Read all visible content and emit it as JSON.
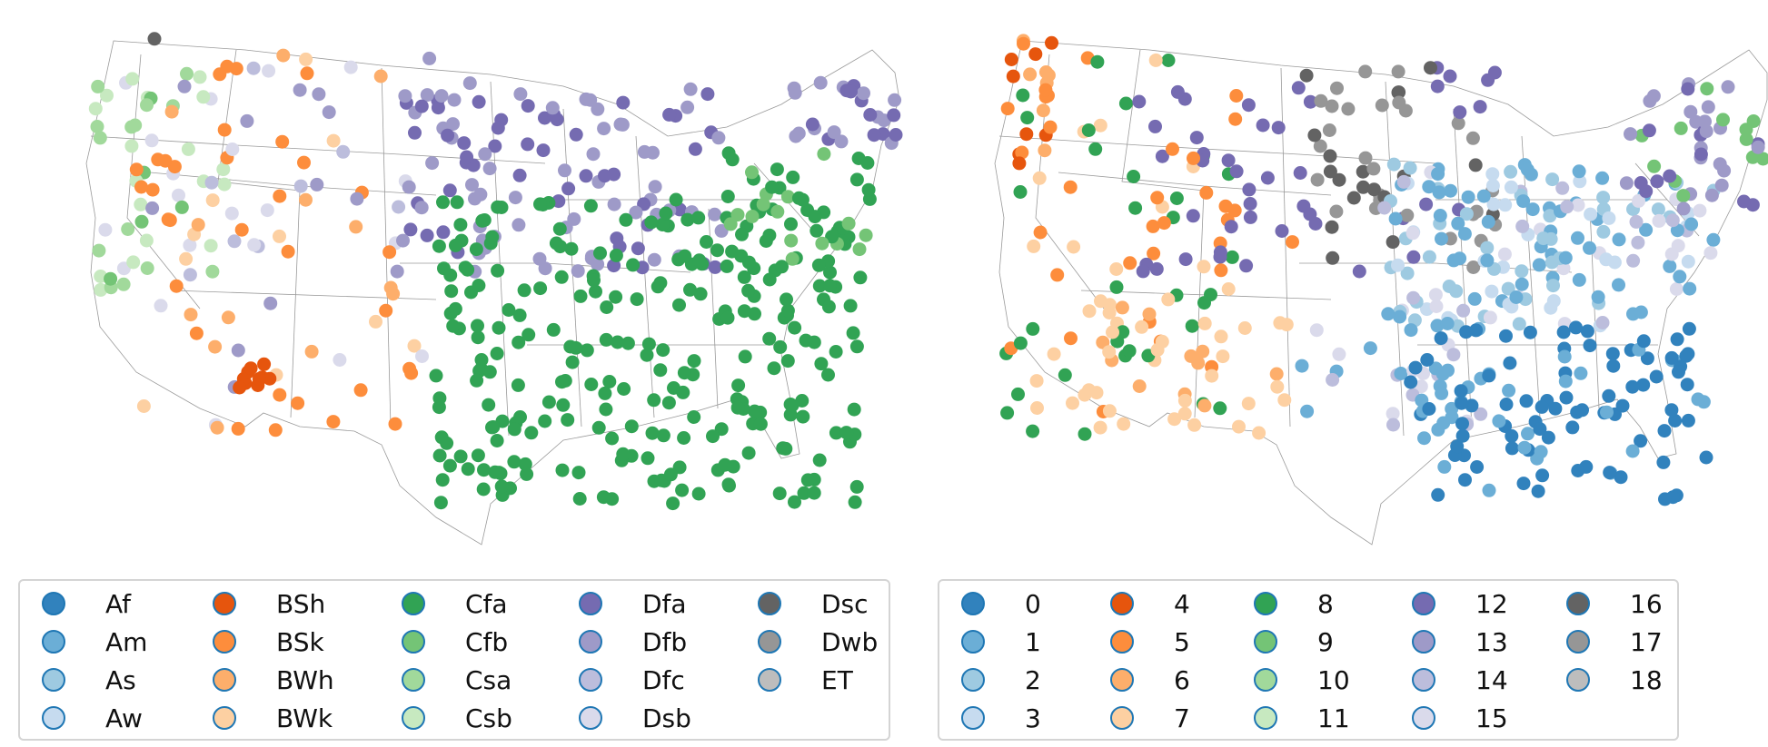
{
  "left_legend": {
    "items": [
      {
        "label": "Af",
        "color": "#3182bd"
      },
      {
        "label": "Am",
        "color": "#6baed6"
      },
      {
        "label": "As",
        "color": "#9ecae1"
      },
      {
        "label": "Aw",
        "color": "#c6dbef"
      },
      {
        "label": "BSh",
        "color": "#e6550d"
      },
      {
        "label": "BSk",
        "color": "#fd8d3c"
      },
      {
        "label": "BWh",
        "color": "#fdae6b"
      },
      {
        "label": "BWk",
        "color": "#fdd0a2"
      },
      {
        "label": "Cfa",
        "color": "#31a354"
      },
      {
        "label": "Cfb",
        "color": "#74c476"
      },
      {
        "label": "Csa",
        "color": "#a1d99b"
      },
      {
        "label": "Csb",
        "color": "#c7e9c0"
      },
      {
        "label": "Dfa",
        "color": "#756bb1"
      },
      {
        "label": "Dfb",
        "color": "#9e9ac8"
      },
      {
        "label": "Dfc",
        "color": "#bcbddc"
      },
      {
        "label": "Dsb",
        "color": "#dadaeb"
      },
      {
        "label": "Dsc",
        "color": "#636363"
      },
      {
        "label": "Dwb",
        "color": "#969696"
      },
      {
        "label": "ET",
        "color": "#bdbdbd"
      }
    ]
  },
  "right_legend": {
    "items": [
      {
        "label": "0",
        "color": "#3182bd"
      },
      {
        "label": "1",
        "color": "#6baed6"
      },
      {
        "label": "2",
        "color": "#9ecae1"
      },
      {
        "label": "3",
        "color": "#c6dbef"
      },
      {
        "label": "4",
        "color": "#e6550d"
      },
      {
        "label": "5",
        "color": "#fd8d3c"
      },
      {
        "label": "6",
        "color": "#fdae6b"
      },
      {
        "label": "7",
        "color": "#fdd0a2"
      },
      {
        "label": "8",
        "color": "#31a354"
      },
      {
        "label": "9",
        "color": "#74c476"
      },
      {
        "label": "10",
        "color": "#a1d99b"
      },
      {
        "label": "11",
        "color": "#c7e9c0"
      },
      {
        "label": "12",
        "color": "#756bb1"
      },
      {
        "label": "13",
        "color": "#9e9ac8"
      },
      {
        "label": "14",
        "color": "#bcbddc"
      },
      {
        "label": "15",
        "color": "#dadaeb"
      },
      {
        "label": "16",
        "color": "#636363"
      },
      {
        "label": "17",
        "color": "#969696"
      },
      {
        "label": "18",
        "color": "#bdbdbd"
      }
    ]
  }
}
